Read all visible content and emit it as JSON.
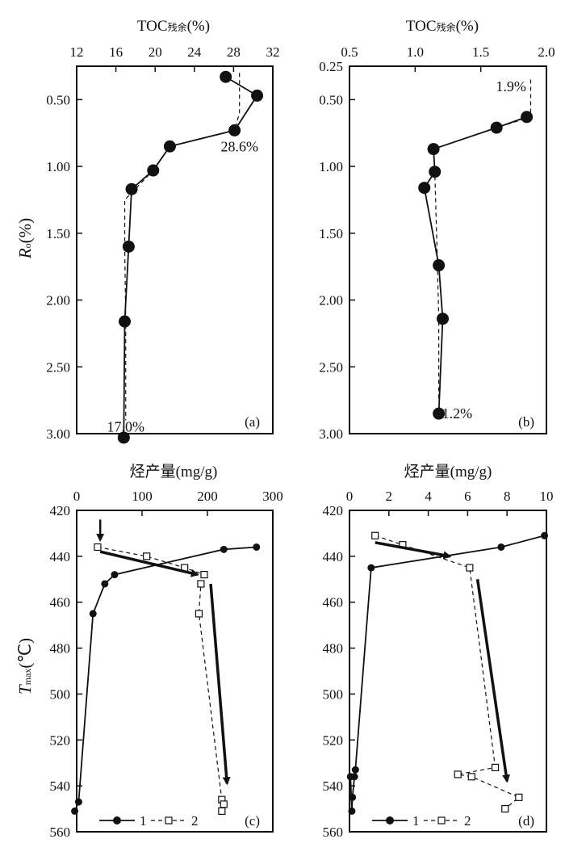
{
  "colors": {
    "ink": "#111111",
    "background": "#ffffff"
  },
  "chart_data": [
    {
      "id": "a",
      "type": "line",
      "panel_label": "(a)",
      "title": "TOC",
      "title_sub": "残余",
      "title_unit": "(%)",
      "xlim": [
        12,
        32
      ],
      "xticks": [
        12,
        16,
        20,
        24,
        28,
        32
      ],
      "xtick_labels": [
        "12",
        "16",
        "20",
        "24",
        "28",
        "32"
      ],
      "ylim": [
        0.25,
        3.0
      ],
      "ylabel": "R",
      "ylabel_sub": "o",
      "ylabel_unit": "(%)",
      "yticks": [
        0.5,
        1.0,
        1.5,
        2.0,
        2.5,
        3.0
      ],
      "ytick_labels": [
        "0.50",
        "1.00",
        "1.50",
        "2.00",
        "2.50",
        "3.00"
      ],
      "series": [
        {
          "name": "measured",
          "style": "solid-filled-circle",
          "x": [
            27.2,
            30.4,
            28.1,
            21.5,
            19.8,
            17.6,
            17.3,
            16.9,
            16.8
          ],
          "y": [
            0.33,
            0.47,
            0.73,
            0.85,
            1.03,
            1.17,
            1.6,
            2.16,
            3.03
          ]
        },
        {
          "name": "envelope",
          "style": "dashed",
          "markers": false,
          "x": [
            28.6,
            28.6,
            28.1,
            21.5,
            19.8,
            16.9,
            16.9,
            17.0,
            17.0
          ],
          "y": [
            0.3,
            0.6,
            0.73,
            0.85,
            1.03,
            1.25,
            1.6,
            2.16,
            2.9
          ]
        }
      ],
      "annotations": [
        {
          "text": "28.6%",
          "x": 28.6,
          "y": 0.85
        },
        {
          "text": "17.0%",
          "x": 17.0,
          "y": 2.95
        }
      ]
    },
    {
      "id": "b",
      "type": "line",
      "panel_label": "(b)",
      "title": "TOC",
      "title_sub": "残余",
      "title_unit": "(%)",
      "xlim": [
        0.5,
        2.0
      ],
      "xticks": [
        0.5,
        1.0,
        1.5,
        2.0
      ],
      "xtick_labels": [
        "0.5",
        "1.0",
        "1.5",
        "2.0"
      ],
      "ylim": [
        0.25,
        3.0
      ],
      "yticks": [
        0.25,
        0.5,
        1.0,
        1.5,
        2.0,
        2.5,
        3.0
      ],
      "ytick_labels": [
        "0.25",
        "0.50",
        "1.00",
        "1.50",
        "2.00",
        "2.50",
        "3.00"
      ],
      "series": [
        {
          "name": "measured",
          "style": "solid-filled-circle",
          "x": [
            1.85,
            1.62,
            1.14,
            1.15,
            1.07,
            1.18,
            1.21,
            1.18
          ],
          "y": [
            0.63,
            0.71,
            0.87,
            1.04,
            1.16,
            1.74,
            2.14,
            2.85
          ]
        },
        {
          "name": "envelope",
          "style": "dashed",
          "markers": false,
          "x": [
            1.88,
            1.88,
            1.62,
            1.14,
            1.15,
            1.17,
            1.18,
            1.18
          ],
          "y": [
            0.35,
            0.63,
            0.71,
            0.87,
            1.04,
            1.74,
            2.14,
            2.75
          ]
        }
      ],
      "annotations": [
        {
          "text": "1.9%",
          "x": 1.73,
          "y": 0.4
        },
        {
          "text": "1.2%",
          "x": 1.32,
          "y": 2.85
        }
      ]
    },
    {
      "id": "c",
      "type": "line",
      "panel_label": "(c)",
      "title": "烃产量(mg/g)",
      "xlim": [
        0,
        300
      ],
      "xticks": [
        0,
        100,
        200,
        300
      ],
      "xtick_labels": [
        "0",
        "100",
        "200",
        "300"
      ],
      "ylim": [
        420,
        560
      ],
      "ylabel": "T",
      "ylabel_sub": "max",
      "ylabel_unit": "(℃)",
      "yticks": [
        420,
        440,
        460,
        480,
        500,
        520,
        540,
        560
      ],
      "ytick_labels": [
        "420",
        "440",
        "460",
        "480",
        "500",
        "520",
        "540",
        "560"
      ],
      "series": [
        {
          "name": "1",
          "style": "solid-filled-circle",
          "marker_points": true,
          "x": [
            275,
            225,
            58,
            43,
            25,
            3,
            -3
          ],
          "y": [
            436,
            437,
            448,
            452,
            465,
            547,
            551
          ]
        },
        {
          "name": "2",
          "style": "dashed-open-square",
          "marker_points": true,
          "x": [
            32,
            107,
            165,
            195,
            190,
            187,
            222,
            225,
            222
          ],
          "y": [
            436,
            440,
            445,
            448,
            452,
            465,
            546,
            548,
            551
          ]
        }
      ],
      "trend_arrows": [
        {
          "x": [
            36,
            185
          ],
          "y": [
            438,
            448
          ]
        },
        {
          "x": [
            205,
            230
          ],
          "y": [
            452,
            539
          ]
        }
      ],
      "marker_arrow": {
        "x": 36,
        "y_from": 424,
        "y_to": 433
      },
      "legend": [
        {
          "label": "1"
        },
        {
          "label": "2"
        }
      ]
    },
    {
      "id": "d",
      "type": "line",
      "panel_label": "(d)",
      "title": "烃产量(mg/g)",
      "xlim": [
        0,
        10
      ],
      "xticks": [
        0,
        2,
        4,
        6,
        8,
        10
      ],
      "xtick_labels": [
        "0",
        "2",
        "4",
        "6",
        "8",
        "10"
      ],
      "ylim": [
        420,
        560
      ],
      "yticks": [
        420,
        440,
        460,
        480,
        500,
        520,
        540,
        560
      ],
      "ytick_labels": [
        "420",
        "440",
        "460",
        "480",
        "500",
        "520",
        "540",
        "560"
      ],
      "series": [
        {
          "name": "1",
          "style": "solid-filled-circle",
          "marker_points": true,
          "x": [
            9.9,
            7.7,
            1.1,
            0.3,
            0.25,
            0.15,
            0.12,
            0.05
          ],
          "y": [
            431,
            436,
            445,
            533,
            536,
            545,
            551,
            536
          ]
        },
        {
          "name": "2",
          "style": "dashed-open-square",
          "marker_points": true,
          "x": [
            1.3,
            2.7,
            6.1,
            7.4,
            5.5,
            6.2,
            8.6,
            7.9
          ],
          "y": [
            431,
            435,
            445,
            532,
            535,
            536,
            545,
            550
          ]
        }
      ],
      "trend_arrows": [
        {
          "x": [
            1.3,
            5.1
          ],
          "y": [
            434,
            440
          ]
        },
        {
          "x": [
            6.5,
            8.0
          ],
          "y": [
            450,
            538
          ]
        }
      ],
      "legend": [
        {
          "label": "1"
        },
        {
          "label": "2"
        }
      ]
    }
  ]
}
